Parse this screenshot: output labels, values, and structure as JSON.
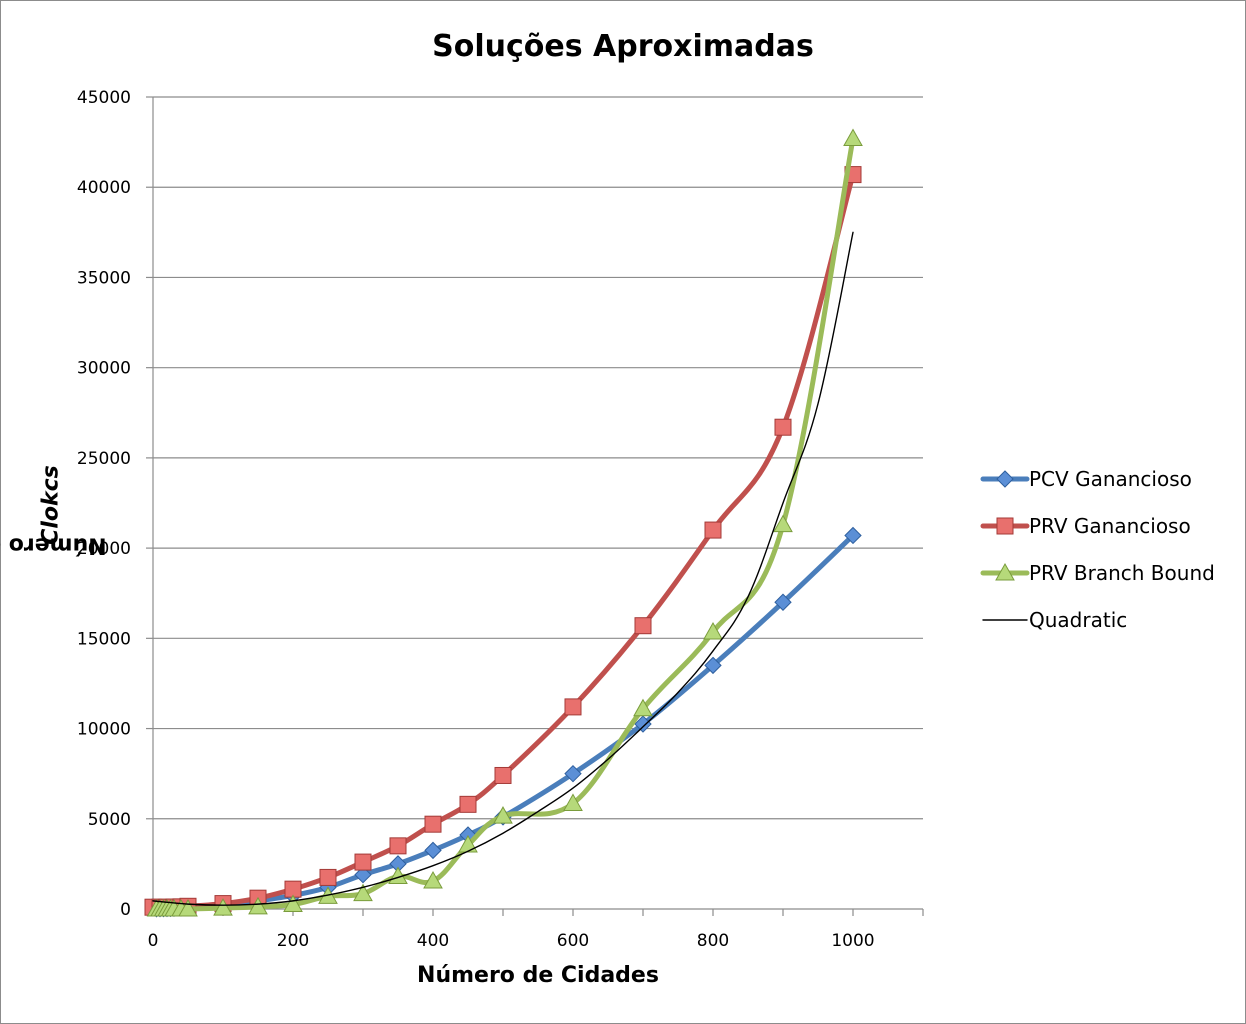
{
  "chart_data": {
    "type": "line",
    "title": "Soluções Aproximadas",
    "xlabel": "Número de Cidades",
    "ylabel_prefix": "Número de ",
    "ylabel_italic": "Clokcs",
    "xlim": [
      0,
      1100
    ],
    "ylim": [
      0,
      45000
    ],
    "xticks": [
      0,
      200,
      400,
      600,
      800,
      1000
    ],
    "yticks": [
      0,
      5000,
      10000,
      15000,
      20000,
      25000,
      30000,
      35000,
      40000,
      45000
    ],
    "grid": "horizontal",
    "legend_position": "right",
    "series": [
      {
        "name": "PCV Ganancioso",
        "color": "#4a7ebb",
        "marker": "diamond",
        "x": [
          5,
          10,
          15,
          20,
          25,
          30,
          40,
          50,
          100,
          150,
          200,
          250,
          300,
          350,
          400,
          450,
          500,
          600,
          700,
          800,
          900,
          1000
        ],
        "y": [
          10,
          15,
          20,
          25,
          30,
          40,
          55,
          80,
          200,
          450,
          750,
          1200,
          1900,
          2500,
          3250,
          4100,
          5100,
          7500,
          10250,
          13500,
          17000,
          20700
        ]
      },
      {
        "name": "PRV Ganancioso",
        "color": "#c0504d",
        "marker": "square",
        "x": [
          0,
          10,
          20,
          30,
          40,
          50,
          100,
          150,
          200,
          250,
          300,
          350,
          400,
          450,
          500,
          600,
          700,
          800,
          900,
          1000
        ],
        "y": [
          100,
          100,
          100,
          110,
          120,
          150,
          300,
          600,
          1100,
          1750,
          2600,
          3500,
          4700,
          5800,
          7400,
          11200,
          15700,
          21000,
          26700,
          40700
        ]
      },
      {
        "name": "PRV Branch Bound",
        "color": "#9bbb59",
        "marker": "triangle",
        "x": [
          5,
          10,
          15,
          20,
          25,
          30,
          40,
          50,
          100,
          150,
          200,
          250,
          300,
          350,
          400,
          450,
          500,
          600,
          700,
          800,
          900,
          1000
        ],
        "y": [
          0,
          0,
          0,
          0,
          0,
          0,
          0,
          0,
          50,
          120,
          250,
          700,
          850,
          1800,
          1550,
          3550,
          5150,
          5850,
          11100,
          15350,
          21300,
          42700
        ]
      },
      {
        "name": "Quadratic",
        "color": "#000000",
        "marker": "none",
        "x": [
          0,
          50,
          100,
          150,
          200,
          250,
          300,
          350,
          400,
          450,
          500,
          550,
          600,
          650,
          700,
          750,
          800,
          850,
          900,
          950,
          1000
        ],
        "y": [
          450,
          270,
          210,
          270,
          450,
          770,
          1200,
          1750,
          2400,
          3200,
          4200,
          5400,
          6700,
          8300,
          10100,
          12000,
          14300,
          17300,
          22500,
          28000,
          37500
        ]
      }
    ]
  }
}
